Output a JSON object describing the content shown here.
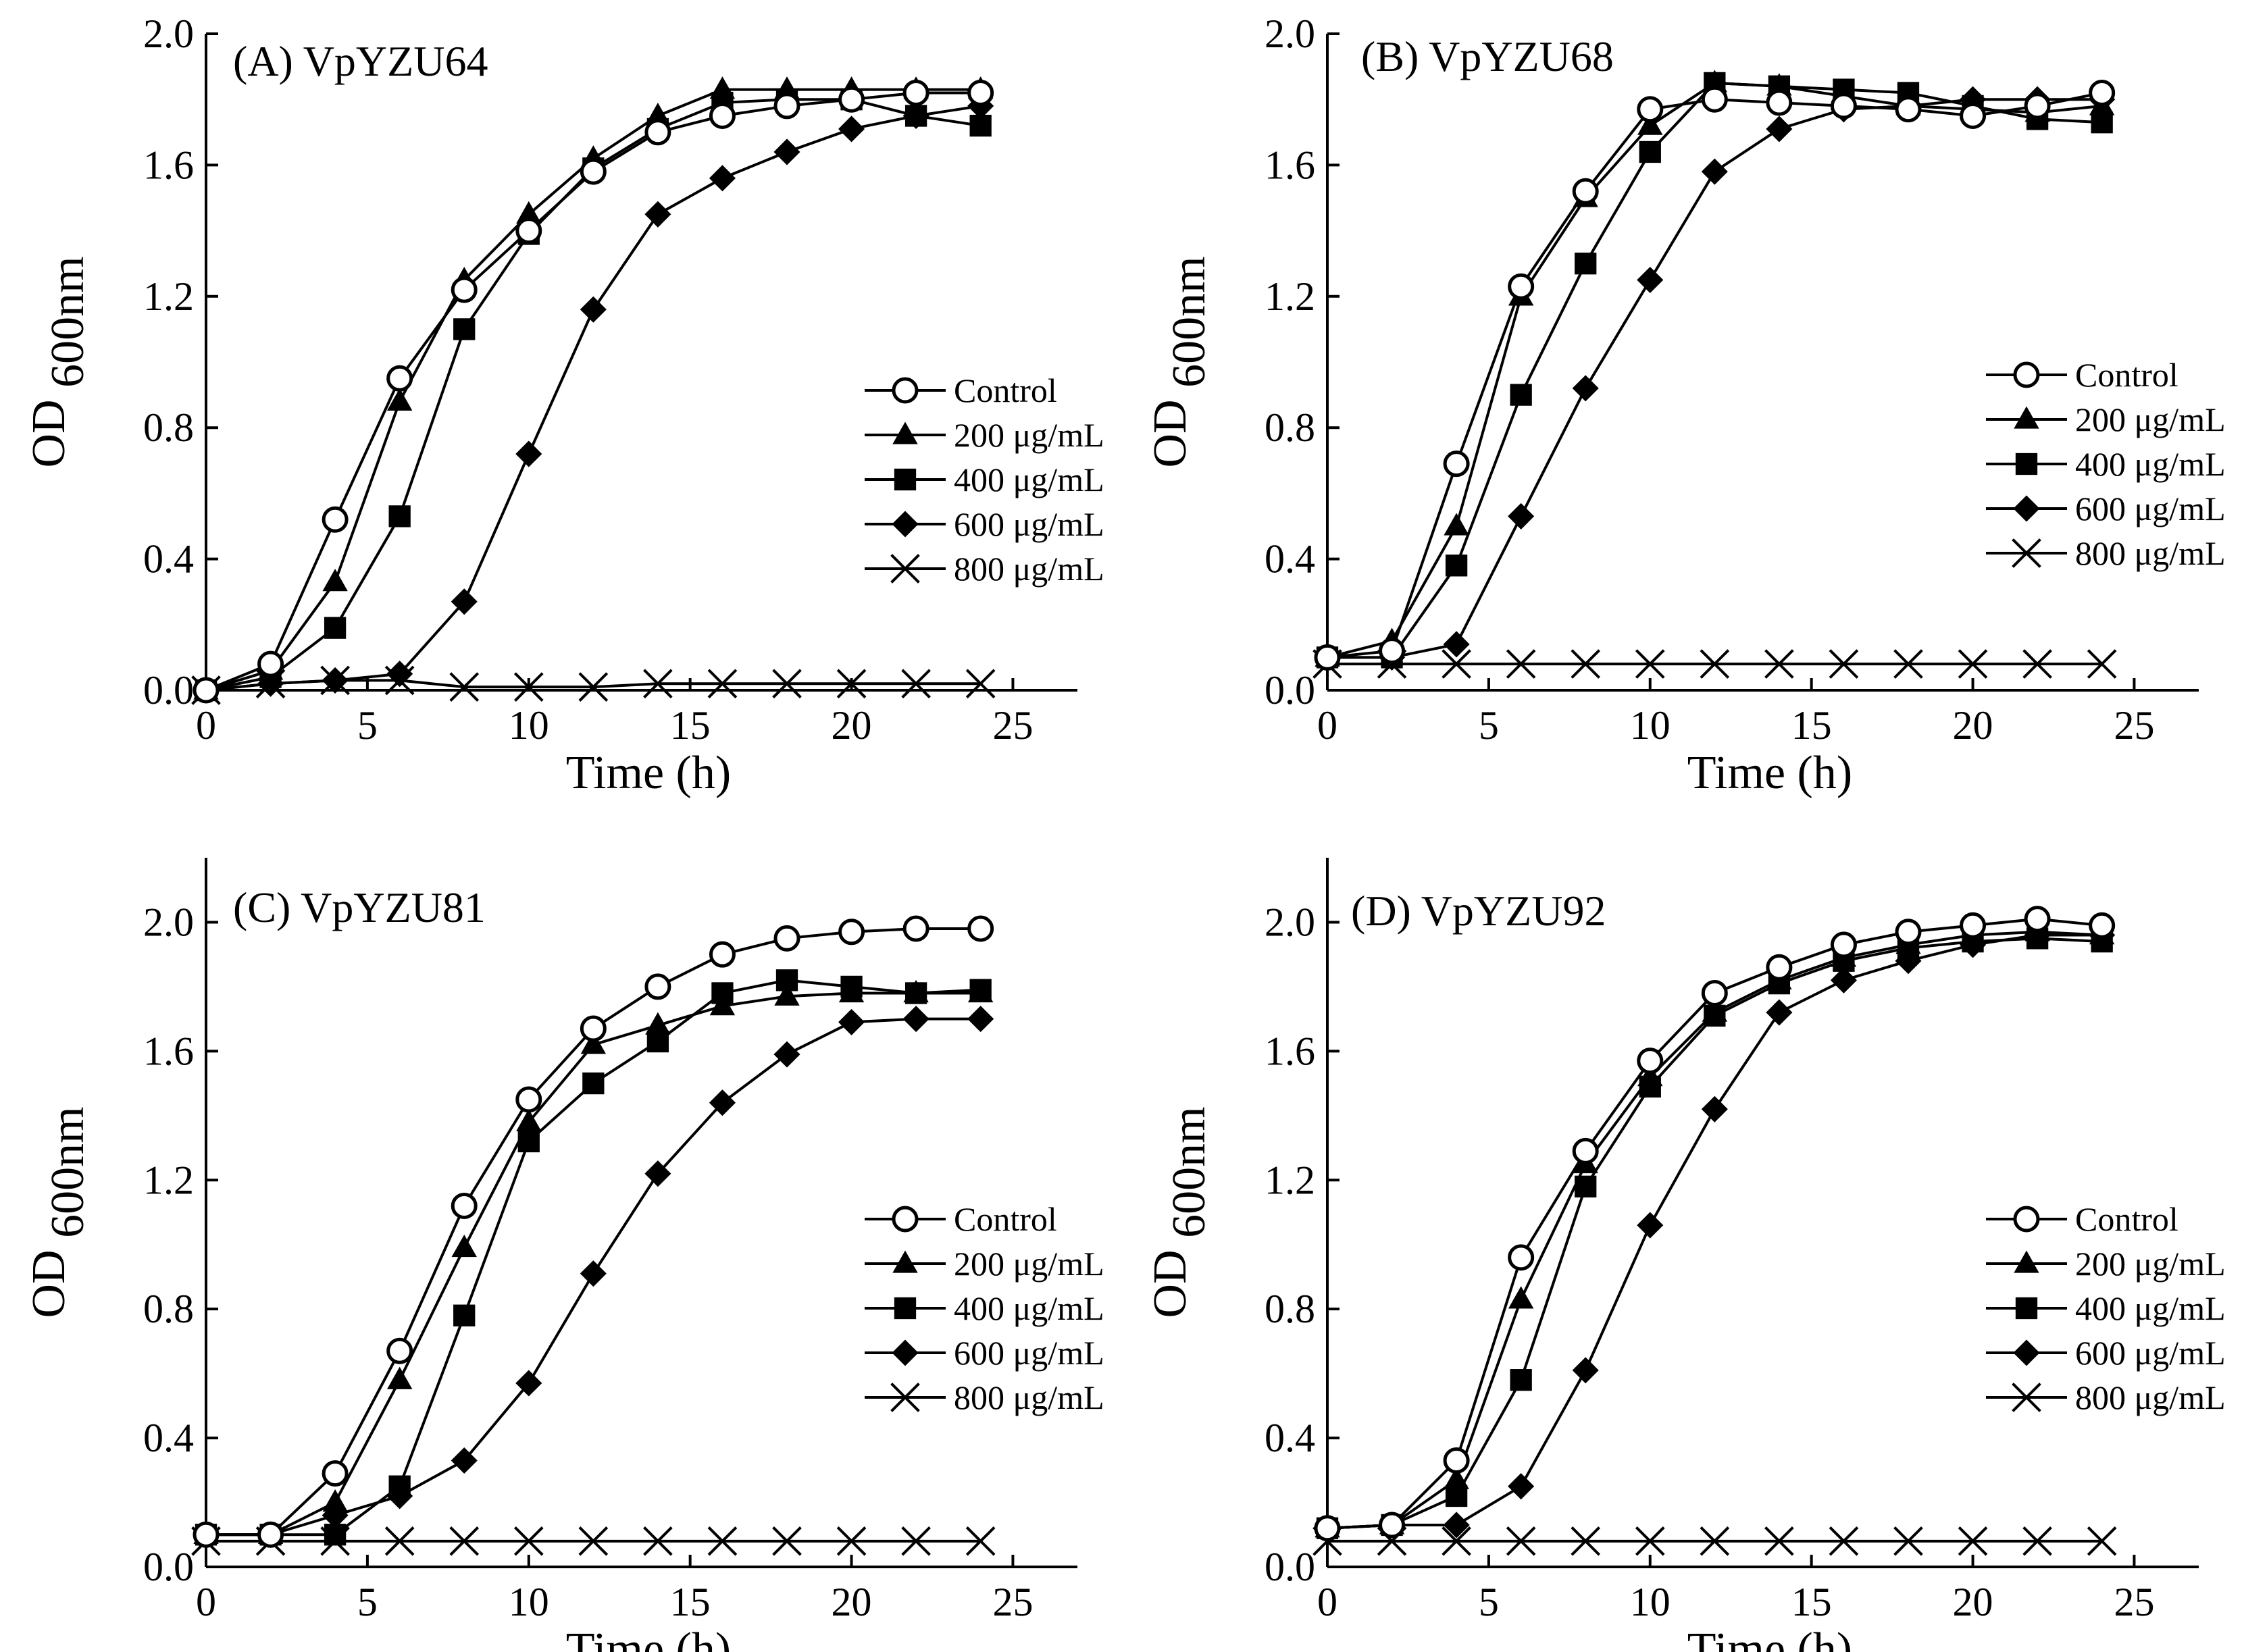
{
  "chart_data": [
    {
      "type": "line",
      "title": "(A) VpYZU64",
      "xlabel": "Time (h)",
      "ylabel": {
        "main": "OD",
        "sub": "600nm"
      },
      "xlim": [
        0,
        27
      ],
      "ylim": [
        0,
        2.0
      ],
      "xticks": [
        0,
        5,
        10,
        15,
        20,
        25
      ],
      "yticks": [
        "0.0",
        "0.4",
        "0.8",
        "1.2",
        "1.6",
        "2.0"
      ],
      "legend_position": "right",
      "x": [
        0,
        2,
        4,
        6,
        8,
        10,
        12,
        14,
        16,
        18,
        20,
        22,
        24
      ],
      "series": [
        {
          "name": "Control",
          "marker": "open-circle",
          "values": [
            0.0,
            0.08,
            0.52,
            0.95,
            1.22,
            1.4,
            1.58,
            1.7,
            1.75,
            1.78,
            1.8,
            1.82,
            1.82
          ]
        },
        {
          "name": "200 μg/mL",
          "marker": "filled-triangle",
          "values": [
            0.0,
            0.06,
            0.33,
            0.88,
            1.25,
            1.45,
            1.62,
            1.75,
            1.83,
            1.83,
            1.83,
            1.83,
            1.83
          ]
        },
        {
          "name": "400 μg/mL",
          "marker": "filled-square",
          "values": [
            0.0,
            0.04,
            0.19,
            0.53,
            1.1,
            1.39,
            1.59,
            1.71,
            1.79,
            1.8,
            1.8,
            1.75,
            1.72
          ]
        },
        {
          "name": "600 μg/mL",
          "marker": "filled-diamond",
          "values": [
            0.0,
            0.02,
            0.03,
            0.05,
            0.27,
            0.72,
            1.16,
            1.45,
            1.56,
            1.64,
            1.71,
            1.75,
            1.78
          ]
        },
        {
          "name": "800 μg/mL",
          "marker": "cross",
          "values": [
            0.0,
            0.02,
            0.03,
            0.03,
            0.01,
            0.01,
            0.01,
            0.02,
            0.02,
            0.02,
            0.02,
            0.02,
            0.02
          ]
        }
      ]
    },
    {
      "type": "line",
      "title": "(B) VpYZU68",
      "xlabel": "Time (h)",
      "ylabel": {
        "main": "OD",
        "sub": "600nm"
      },
      "xlim": [
        0,
        27
      ],
      "ylim": [
        0,
        2.0
      ],
      "xticks": [
        0,
        5,
        10,
        15,
        20,
        25
      ],
      "yticks": [
        "0.0",
        "0.4",
        "0.8",
        "1.2",
        "1.6",
        "2.0"
      ],
      "legend_position": "right",
      "x": [
        0,
        2,
        4,
        6,
        8,
        10,
        12,
        14,
        16,
        18,
        20,
        22,
        24
      ],
      "series": [
        {
          "name": "Control",
          "marker": "open-circle",
          "values": [
            0.1,
            0.12,
            0.69,
            1.23,
            1.52,
            1.77,
            1.8,
            1.79,
            1.78,
            1.77,
            1.75,
            1.78,
            1.82
          ]
        },
        {
          "name": "200 μg/mL",
          "marker": "filled-triangle",
          "values": [
            0.1,
            0.15,
            0.5,
            1.2,
            1.5,
            1.72,
            1.85,
            1.84,
            1.81,
            1.78,
            1.77,
            1.76,
            1.78
          ]
        },
        {
          "name": "400 μg/mL",
          "marker": "filled-square",
          "values": [
            0.1,
            0.1,
            0.38,
            0.9,
            1.3,
            1.64,
            1.85,
            1.84,
            1.83,
            1.82,
            1.78,
            1.74,
            1.73
          ]
        },
        {
          "name": "600 μg/mL",
          "marker": "filled-diamond",
          "values": [
            0.1,
            0.1,
            0.14,
            0.53,
            0.92,
            1.25,
            1.58,
            1.71,
            1.77,
            1.78,
            1.8,
            1.8,
            1.8
          ]
        },
        {
          "name": "800 μg/mL",
          "marker": "cross",
          "values": [
            0.08,
            0.08,
            0.08,
            0.08,
            0.08,
            0.08,
            0.08,
            0.08,
            0.08,
            0.08,
            0.08,
            0.08,
            0.08
          ]
        }
      ]
    },
    {
      "type": "line",
      "title": "(C)  VpYZU81",
      "xlabel": "Time (h)",
      "ylabel": {
        "main": "OD",
        "sub": "600nm"
      },
      "xlim": [
        0,
        27
      ],
      "ylim": [
        0,
        2.2
      ],
      "xticks": [
        0,
        5,
        10,
        15,
        20,
        25
      ],
      "yticks": [
        "0.0",
        "0.4",
        "0.8",
        "1.2",
        "1.6",
        "2.0"
      ],
      "legend_position": "right",
      "x": [
        0,
        2,
        4,
        6,
        8,
        10,
        12,
        14,
        16,
        18,
        20,
        22,
        24
      ],
      "series": [
        {
          "name": "Control",
          "marker": "open-circle",
          "values": [
            0.1,
            0.1,
            0.29,
            0.67,
            1.12,
            1.45,
            1.67,
            1.8,
            1.9,
            1.95,
            1.97,
            1.98,
            1.98
          ]
        },
        {
          "name": "200 μg/mL",
          "marker": "filled-triangle",
          "values": [
            0.1,
            0.1,
            0.2,
            0.58,
            0.99,
            1.38,
            1.62,
            1.68,
            1.74,
            1.77,
            1.78,
            1.78,
            1.78
          ]
        },
        {
          "name": "400 μg/mL",
          "marker": "filled-square",
          "values": [
            0.1,
            0.1,
            0.1,
            0.25,
            0.78,
            1.32,
            1.5,
            1.63,
            1.78,
            1.82,
            1.8,
            1.78,
            1.79
          ]
        },
        {
          "name": "600 μg/mL",
          "marker": "filled-diamond",
          "values": [
            0.1,
            0.1,
            0.16,
            0.22,
            0.33,
            0.57,
            0.91,
            1.22,
            1.44,
            1.59,
            1.69,
            1.7,
            1.7
          ]
        },
        {
          "name": "800 μg/mL",
          "marker": "cross",
          "values": [
            0.08,
            0.08,
            0.08,
            0.08,
            0.08,
            0.08,
            0.08,
            0.08,
            0.08,
            0.08,
            0.08,
            0.08,
            0.08
          ]
        }
      ]
    },
    {
      "type": "line",
      "title": "(D) VpYZU92",
      "xlabel": "Time (h)",
      "ylabel": {
        "main": "OD",
        "sub": "600nm"
      },
      "xlim": [
        0,
        27
      ],
      "ylim": [
        0,
        2.2
      ],
      "xticks": [
        0,
        5,
        10,
        15,
        20,
        25
      ],
      "yticks": [
        "0.0",
        "0.4",
        "0.8",
        "1.2",
        "1.6",
        "2.0"
      ],
      "legend_position": "right",
      "x": [
        0,
        2,
        4,
        6,
        8,
        10,
        12,
        14,
        16,
        18,
        20,
        22,
        24
      ],
      "series": [
        {
          "name": "Control",
          "marker": "open-circle",
          "values": [
            0.12,
            0.13,
            0.33,
            0.96,
            1.29,
            1.57,
            1.78,
            1.86,
            1.93,
            1.97,
            1.99,
            2.01,
            1.99
          ]
        },
        {
          "name": "200 μg/mL",
          "marker": "filled-triangle",
          "values": [
            0.12,
            0.13,
            0.27,
            0.83,
            1.25,
            1.52,
            1.72,
            1.82,
            1.89,
            1.93,
            1.96,
            1.97,
            1.96
          ]
        },
        {
          "name": "400 μg/mL",
          "marker": "filled-square",
          "values": [
            0.12,
            0.13,
            0.22,
            0.58,
            1.18,
            1.49,
            1.71,
            1.81,
            1.88,
            1.92,
            1.94,
            1.95,
            1.94
          ]
        },
        {
          "name": "600 μg/mL",
          "marker": "filled-diamond",
          "values": [
            0.12,
            0.13,
            0.13,
            0.25,
            0.61,
            1.06,
            1.42,
            1.72,
            1.82,
            1.88,
            1.93,
            1.96,
            1.96
          ]
        },
        {
          "name": "800 μg/mL",
          "marker": "cross",
          "values": [
            0.08,
            0.08,
            0.08,
            0.08,
            0.08,
            0.08,
            0.08,
            0.08,
            0.08,
            0.08,
            0.08,
            0.08,
            0.08
          ]
        }
      ]
    }
  ]
}
